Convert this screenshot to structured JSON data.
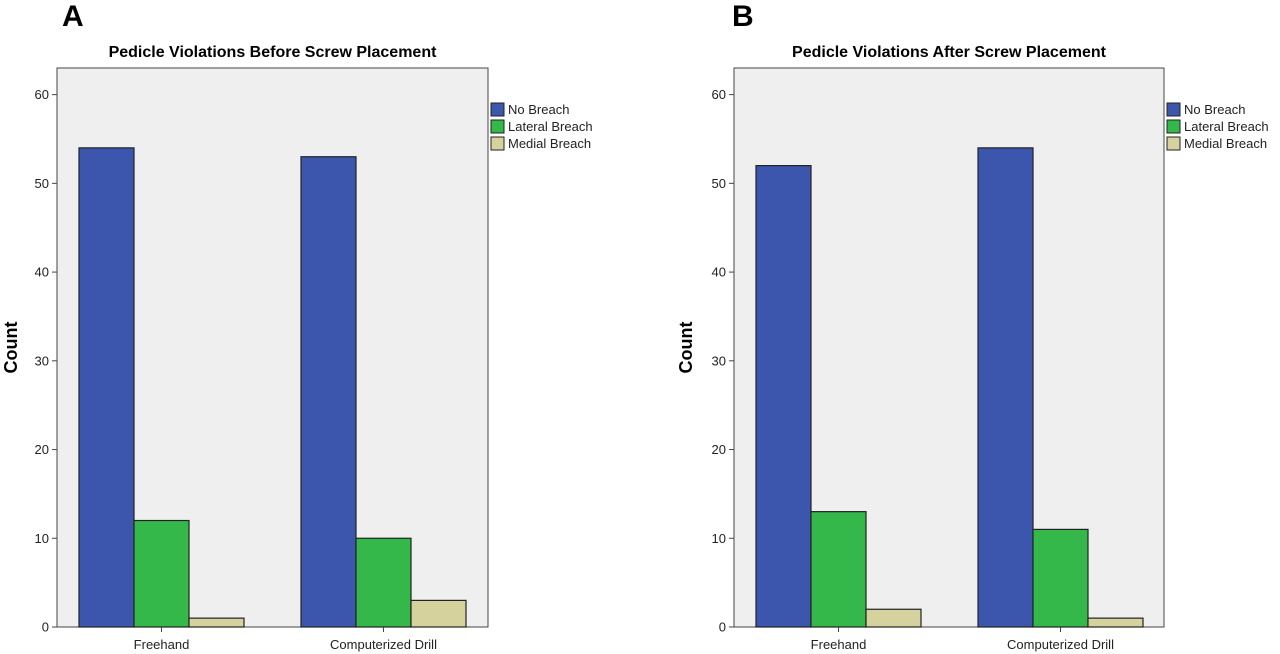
{
  "chart_data": [
    {
      "panel": "A",
      "type": "bar",
      "title": "Pedicle Violations Before Screw Placement",
      "xlabel": "",
      "ylabel": "Count",
      "ylim": [
        0,
        63
      ],
      "yticks": [
        0,
        10,
        20,
        30,
        40,
        50,
        60
      ],
      "categories": [
        "Freehand",
        "Computerized Drill"
      ],
      "series": [
        {
          "name": "No Breach",
          "values": [
            54,
            53
          ]
        },
        {
          "name": "Lateral Breach",
          "values": [
            12,
            10
          ]
        },
        {
          "name": "Medial Breach",
          "values": [
            1,
            3
          ]
        }
      ],
      "grid": false,
      "legend": "top-right"
    },
    {
      "panel": "B",
      "type": "bar",
      "title": "Pedicle Violations After Screw Placement",
      "xlabel": "",
      "ylabel": "Count",
      "ylim": [
        0,
        63
      ],
      "yticks": [
        0,
        10,
        20,
        30,
        40,
        50,
        60
      ],
      "categories": [
        "Freehand",
        "Computerized Drill"
      ],
      "series": [
        {
          "name": "No Breach",
          "values": [
            52,
            54
          ]
        },
        {
          "name": "Lateral Breach",
          "values": [
            13,
            11
          ]
        },
        {
          "name": "Medial Breach",
          "values": [
            2,
            1
          ]
        }
      ],
      "grid": false,
      "legend": "top-right"
    }
  ],
  "colors": {
    "series": [
      "#3d56ad",
      "#34b84a",
      "#d6d29e"
    ],
    "plot_background": "#efefef",
    "bar_edge": "#222222",
    "axis": "#444444"
  }
}
